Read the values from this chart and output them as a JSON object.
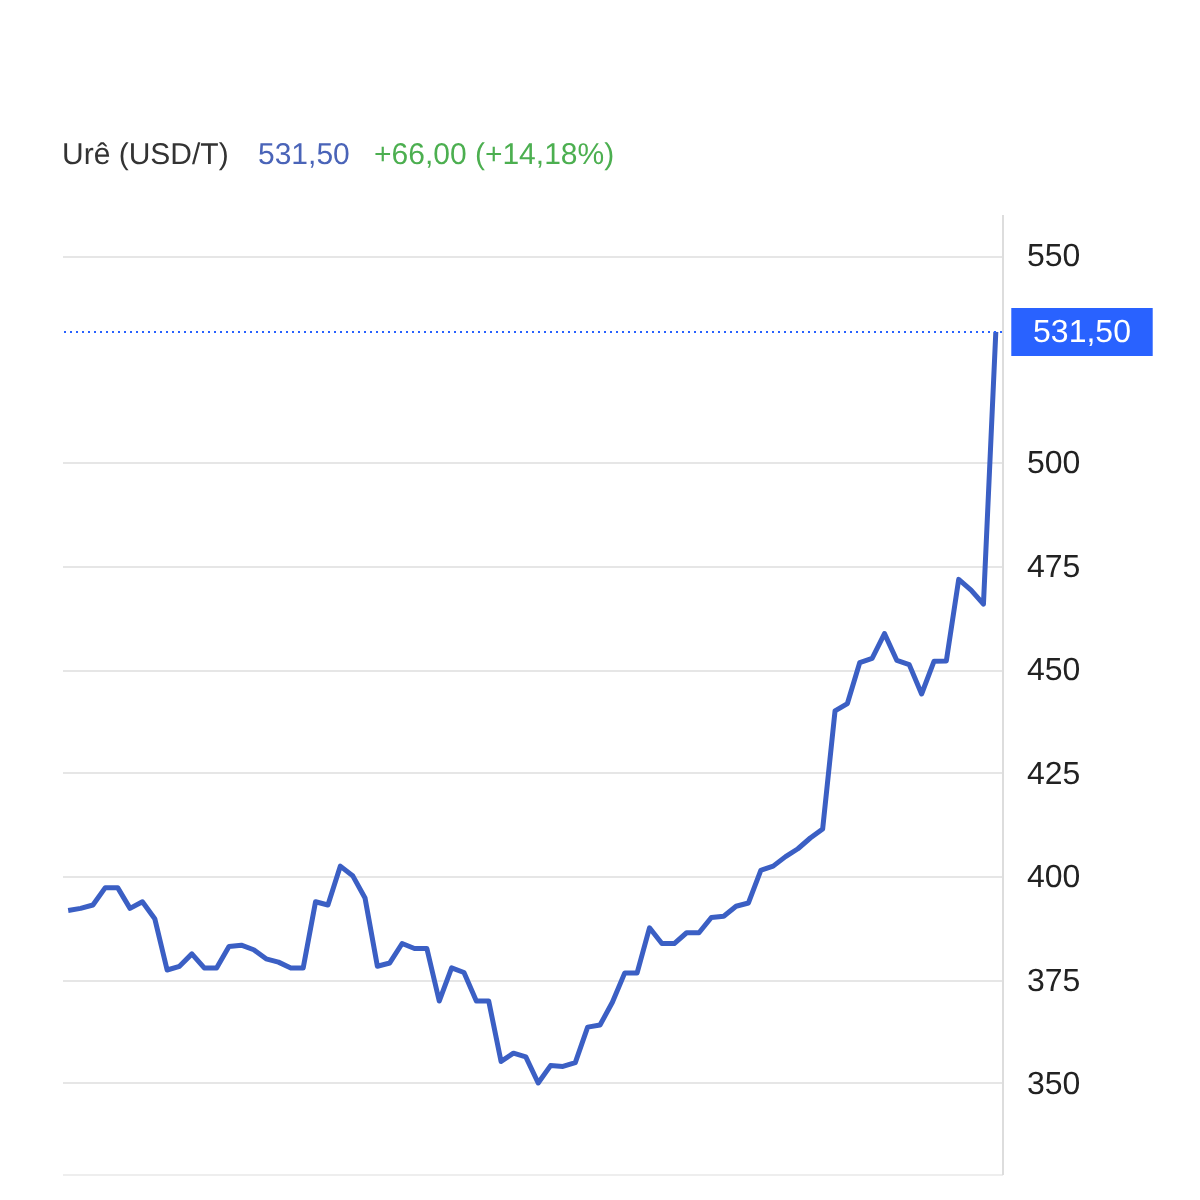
{
  "chart_data": {
    "type": "line",
    "title": "Urê (USD/T)",
    "annotations": [
      "531,50",
      "+66,00 (+14,18%)"
    ],
    "categories": [
      null,
      null,
      null,
      null,
      null,
      null,
      null,
      null,
      null,
      null,
      null,
      null,
      null,
      null,
      null,
      null,
      null,
      null,
      null,
      null,
      null,
      null,
      null,
      null,
      null,
      null,
      null,
      null,
      null,
      null,
      null,
      null,
      null,
      null,
      null,
      null,
      null,
      null,
      null,
      null,
      null,
      null,
      null,
      null,
      null,
      null,
      null,
      null,
      null,
      null,
      null,
      null,
      null,
      null,
      null,
      null,
      null,
      null,
      null,
      null,
      null,
      null,
      null,
      null,
      null,
      null,
      null,
      null,
      null,
      null,
      null,
      null,
      null,
      null,
      null,
      null
    ],
    "series": [
      {
        "color": "#3b5fc4",
        "values": [
          391.7,
          392.2,
          393,
          397.2,
          397.2,
          392.2,
          393.8,
          389.7,
          377.3,
          378.2,
          381.2,
          377.8,
          377.8,
          383,
          383.3,
          382.2,
          380,
          379.2,
          377.8,
          377.8,
          393.8,
          393,
          402.4,
          400.1,
          394.7,
          378.2,
          379,
          383.7,
          382.5,
          382.5,
          369.8,
          377.8,
          376.7,
          369.8,
          369.8,
          355.2,
          357.2,
          356.3,
          350,
          354.2,
          354,
          354.9,
          363.5,
          364,
          369.5,
          376.6,
          376.6,
          387.5,
          383.7,
          383.7,
          386.3,
          386.3,
          390,
          390.3,
          392.7,
          393.5,
          401.4,
          402.4,
          404.7,
          406.6,
          409.2,
          411.4,
          439.9,
          441.7,
          451.6,
          452.6,
          458.6,
          452.1,
          451.1,
          444,
          451.9,
          452,
          471.7,
          469.1,
          465.7,
          531.5
        ]
      }
    ],
    "ylim": [
      328,
      560
    ],
    "yticks": [
      350,
      375,
      400,
      425,
      450,
      475,
      500,
      550
    ],
    "ref_lines": [
      {
        "axis": "y",
        "value": 531.5,
        "label": "531,50",
        "color": "#2962ff",
        "line_style": "dotted"
      }
    ],
    "grid": "y",
    "tick_labels": "y",
    "line_style": "solid",
    "marker": "none"
  }
}
